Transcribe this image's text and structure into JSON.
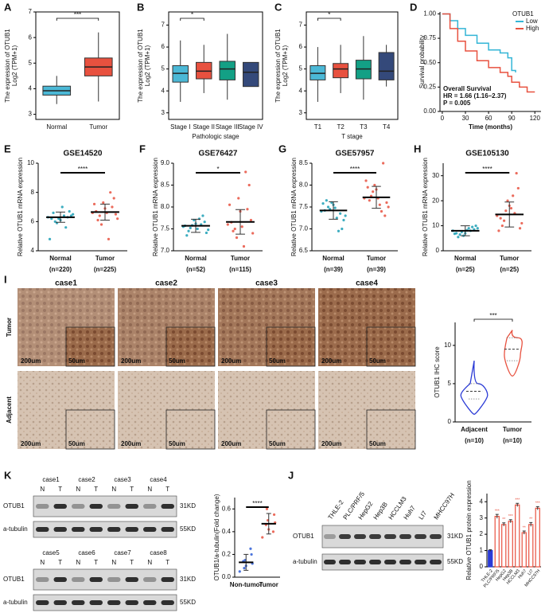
{
  "panels": [
    {
      "label": "A",
      "chart": {
        "type": "box",
        "ylabel": [
          "The expression of OTUB1",
          "Log2 (TPM+1)"
        ],
        "categories": [
          "Normal",
          "Tumor"
        ],
        "colors": [
          "#4bb8d6",
          "#e8513f"
        ],
        "boxes": [
          {
            "low": 3.4,
            "q1": 3.75,
            "median": 3.92,
            "q3": 4.1,
            "high": 4.5
          },
          {
            "low": 3.5,
            "q1": 4.5,
            "median": 4.85,
            "q3": 5.2,
            "high": 6.2
          }
        ],
        "ylim": [
          2.8,
          7
        ],
        "yticks": [
          3,
          4,
          5,
          6,
          7
        ],
        "significance": "***"
      }
    },
    {
      "label": "B",
      "chart": {
        "type": "box",
        "ylabel": [
          "The expression of OTUB1",
          "Log2 (TPM+1)"
        ],
        "xlabel": "Pathologic stage",
        "categories": [
          "Stage I",
          "Stage II",
          "Stage III",
          "Stage IV"
        ],
        "colors": [
          "#4bb8d6",
          "#e8513f",
          "#13a085",
          "#34497a"
        ],
        "boxes": [
          {
            "low": 3.5,
            "q1": 4.4,
            "median": 4.8,
            "q3": 5.15,
            "high": 6.3
          },
          {
            "low": 3.9,
            "q1": 4.55,
            "median": 4.9,
            "q3": 5.3,
            "high": 6.1
          },
          {
            "low": 3.6,
            "q1": 4.5,
            "median": 5.0,
            "q3": 5.35,
            "high": 6.6
          },
          {
            "low": 4.2,
            "q1": 4.2,
            "median": 4.85,
            "q3": 5.3,
            "high": 5.3
          }
        ],
        "ylim": [
          2.7,
          7.6
        ],
        "yticks": [
          3,
          4,
          5,
          6,
          7
        ],
        "significance": "*"
      }
    },
    {
      "label": "C",
      "chart": {
        "type": "box",
        "ylabel": [
          "The expression of OTUB1",
          "Log2 (TPM+1)"
        ],
        "xlabel": "T stage",
        "categories": [
          "T1",
          "T2",
          "T3",
          "T4"
        ],
        "colors": [
          "#4bb8d6",
          "#e8513f",
          "#13a085",
          "#34497a"
        ],
        "boxes": [
          {
            "low": 3.5,
            "q1": 4.5,
            "median": 4.8,
            "q3": 5.15,
            "high": 6.0
          },
          {
            "low": 3.9,
            "q1": 4.6,
            "median": 5.0,
            "q3": 5.25,
            "high": 6.1
          },
          {
            "low": 3.6,
            "q1": 4.55,
            "median": 5.0,
            "q3": 5.4,
            "high": 6.5
          },
          {
            "low": 4.2,
            "q1": 4.5,
            "median": 4.9,
            "q3": 5.75,
            "high": 6.1
          }
        ],
        "ylim": [
          2.7,
          7.6
        ],
        "yticks": [
          3,
          4,
          5,
          6,
          7
        ],
        "significance": "*"
      }
    },
    {
      "label": "D",
      "chart": {
        "type": "km",
        "ylabel": "Survival probability",
        "xlabel": "Time (months)",
        "legend_title": "OTUB1",
        "annotations": [
          "Overall Survival",
          "HR = 1.66 (1.16–2.37)",
          "P = 0.005"
        ],
        "xlim": [
          -3,
          128
        ],
        "ylim": [
          0,
          1.02
        ],
        "xticks": [
          0,
          30,
          60,
          90,
          120
        ],
        "yticks": [
          {
            "value": 0,
            "label": "0.00"
          },
          {
            "value": 0.25,
            "label": "0.25"
          },
          {
            "value": 0.5,
            "label": "0.50"
          },
          {
            "value": 0.75,
            "label": "0.75"
          },
          {
            "value": 1,
            "label": "1.00"
          }
        ],
        "series": [
          {
            "name": "Low",
            "color": "#33b5d6",
            "x": [
              0,
              10,
              20,
              30,
              45,
              60,
              75,
              85,
              90,
              95
            ],
            "y": [
              1,
              0.93,
              0.85,
              0.78,
              0.7,
              0.63,
              0.6,
              0.55,
              0.42,
              0.4
            ]
          },
          {
            "name": "High",
            "color": "#e8513f",
            "x": [
              0,
              10,
              20,
              30,
              45,
              60,
              75,
              85,
              90,
              100,
              110,
              120
            ],
            "y": [
              1,
              0.85,
              0.72,
              0.62,
              0.52,
              0.45,
              0.4,
              0.36,
              0.3,
              0.25,
              0.2,
              0.2
            ]
          }
        ]
      }
    },
    {
      "label": "E",
      "chart": {
        "type": "dot",
        "title": "GSE14520",
        "ylabel": "Relative OTUB1 mRNA expression",
        "categories": [
          "Normal",
          "Tumor"
        ],
        "n_labels": [
          "(n=220)",
          "(n=225)"
        ],
        "colors": [
          "#1b9fb5",
          "#e8513f"
        ],
        "means": [
          6.3,
          6.65
        ],
        "sds": [
          0.35,
          0.55
        ],
        "points": [
          [
            6.3,
            6.1,
            6.5,
            6.2,
            6.4,
            5.9,
            6.7,
            6.0,
            6.3,
            6.6,
            5.6,
            6.2,
            6.4,
            4.8,
            7.0
          ],
          [
            6.6,
            6.9,
            6.2,
            7.3,
            6.5,
            5.8,
            7.6,
            6.4,
            7.0,
            6.1,
            8.0,
            6.7,
            4.8,
            7.2,
            6.6
          ]
        ],
        "ylim": [
          4,
          10
        ],
        "yticks": [
          4,
          6,
          8,
          10
        ],
        "significance": "****"
      }
    },
    {
      "label": "F",
      "chart": {
        "type": "dot",
        "title": "GSE76427",
        "ylabel": "Relative OTUB1 mRNA expression",
        "categories": [
          "Normal",
          "Tumor"
        ],
        "n_labels": [
          "(n=52)",
          "(n=115)"
        ],
        "colors": [
          "#1b9fb5",
          "#e8513f"
        ],
        "means": [
          7.57,
          7.66
        ],
        "sds": [
          0.15,
          0.28
        ],
        "points": [
          [
            7.55,
            7.62,
            7.48,
            7.7,
            7.41,
            7.58,
            7.66,
            7.52,
            7.8,
            7.45,
            7.6,
            7.35,
            7.73,
            7.57,
            7.5
          ],
          [
            7.6,
            7.9,
            7.4,
            8.2,
            7.7,
            7.3,
            8.5,
            7.5,
            7.95,
            7.45,
            8.8,
            7.65,
            7.1,
            8.05,
            7.55
          ]
        ],
        "ylim": [
          7,
          9
        ],
        "yticks": [
          {
            "value": 7,
            "label": "7.0"
          },
          7.5,
          {
            "value": 8,
            "label": "8.0"
          },
          8.5,
          {
            "value": 9,
            "label": "9.0"
          }
        ],
        "significance": "*"
      }
    },
    {
      "label": "G",
      "chart": {
        "type": "dot",
        "title": "GSE57957",
        "ylabel": "Relative OTUB1 mRNA expression",
        "categories": [
          "Normal",
          "Tumor"
        ],
        "n_labels": [
          "(n=39)",
          "(n=39)"
        ],
        "colors": [
          "#1b9fb5",
          "#e8513f"
        ],
        "means": [
          7.42,
          7.72
        ],
        "sds": [
          0.2,
          0.25
        ],
        "points": [
          [
            7.4,
            7.55,
            7.3,
            7.6,
            7.2,
            7.45,
            7.0,
            7.5,
            7.35,
            7.65,
            6.95,
            7.42,
            7.25,
            7.58,
            7.48
          ],
          [
            7.7,
            7.9,
            7.5,
            8.0,
            7.6,
            7.85,
            7.3,
            7.75,
            8.5,
            7.65,
            7.4,
            7.95,
            7.55,
            8.1,
            7.7
          ]
        ],
        "ylim": [
          6.5,
          8.5
        ],
        "yticks": [
          6.5,
          {
            "value": 7,
            "label": "7.0"
          },
          7.5,
          {
            "value": 8,
            "label": "8.0"
          },
          8.5
        ],
        "significance": "****"
      }
    },
    {
      "label": "H",
      "chart": {
        "type": "dot",
        "title": "GSE105130",
        "ylabel": "Relative OTUB1 mRNA expression",
        "categories": [
          "Normal",
          "Tumor"
        ],
        "n_labels": [
          "(n=25)",
          "(n=25)"
        ],
        "colors": [
          "#1b9fb5",
          "#e8513f"
        ],
        "means": [
          8,
          14.5
        ],
        "sds": [
          2,
          5
        ],
        "points": [
          [
            8,
            7,
            9,
            6,
            10,
            7.5,
            8.5,
            6.5,
            9.5,
            5.5,
            8,
            7,
            9,
            6.8,
            8.2
          ],
          [
            14,
            18,
            11,
            20,
            9,
            16,
            25,
            12,
            31,
            10,
            15,
            13,
            22,
            8,
            17
          ]
        ],
        "ylim": [
          0,
          35
        ],
        "yticks": [
          0,
          10,
          20,
          30
        ],
        "significance": "****"
      }
    },
    {
      "label": "I",
      "ihc": {
        "cases": [
          "case1",
          "case2",
          "case3",
          "case4"
        ],
        "rows": [
          "Tumor",
          "Adjacent"
        ],
        "scale_labels": [
          "200um",
          "50um"
        ]
      },
      "chart": {
        "type": "violin",
        "ylabel": "OTUB1 IHC score",
        "categories": [
          "Adjacent",
          "Tumor"
        ],
        "n_labels": [
          "(n=10)",
          "(n=10)"
        ],
        "colors": [
          "#2b3bd6",
          "#e8513f"
        ],
        "stats": [
          {
            "min": 1,
            "q1": 3,
            "median": 4,
            "q3": 5,
            "max": 8
          },
          {
            "min": 6,
            "q1": 8,
            "median": 9.5,
            "q3": 11,
            "max": 12
          }
        ],
        "ylim": [
          0,
          13
        ],
        "yticks": [
          0,
          5,
          10
        ],
        "significance": "***"
      }
    },
    {
      "label": "K",
      "blot": {
        "cases": [
          "case1",
          "case2",
          "case3",
          "case4",
          "case5",
          "case6",
          "case7",
          "case8"
        ],
        "lanes": [
          "N",
          "T"
        ],
        "proteins": [
          "OTUB1",
          "a-tubulin"
        ],
        "sizes": [
          "31KD",
          "55KD"
        ]
      },
      "chart": {
        "type": "dot",
        "ylabel": "OTUB1/a-tubulin(Fold change)",
        "categories": [
          "Non-tumor",
          "Tumor"
        ],
        "colors": [
          "#2b5cd6",
          "#e8513f"
        ],
        "means": [
          0.13,
          0.47
        ],
        "sds": [
          0.07,
          0.09
        ],
        "points": [
          [
            0.05,
            0.1,
            0.12,
            0.15,
            0.2,
            0.08,
            0.25,
            0.14
          ],
          [
            0.35,
            0.42,
            0.48,
            0.5,
            0.55,
            0.6,
            0.4,
            0.46
          ]
        ],
        "ylim": [
          0,
          0.7
        ],
        "yticks": [
          {
            "value": 0,
            "label": "0.0"
          },
          0.2,
          0.4,
          0.6
        ],
        "significance": "****"
      }
    },
    {
      "label": "J",
      "blot": {
        "cells": [
          "THLE-2",
          "PLC/PRF/5",
          "HepG2",
          "Hep3B",
          "HCCLM3",
          "Huh7",
          "LI7",
          "MHCC97H"
        ],
        "proteins": [
          "OTUB1",
          "a-tubulin"
        ],
        "sizes": [
          "31KD",
          "55KD"
        ]
      },
      "chart": {
        "type": "bar",
        "ylabel": "Relative OTUB1 protein expression",
        "categories": [
          "THLE-2",
          "PLC/PRF/5",
          "HepG2",
          "Hep3B",
          "HCCLM3",
          "Huh7",
          "LI7",
          "MHCC97H"
        ],
        "values": [
          1,
          3.1,
          2.6,
          2.8,
          3.8,
          2.1,
          2.6,
          3.6
        ],
        "errors": [
          0.05,
          0.12,
          0.1,
          0.1,
          0.1,
          0.1,
          0.12,
          0.1
        ],
        "colors": [
          "#2b3bd6",
          "#e8513f",
          "#e8513f",
          "#e8513f",
          "#e8513f",
          "#e8513f",
          "#e8513f",
          "#e8513f"
        ],
        "sig": [
          null,
          "***",
          "**",
          "***",
          "***",
          "**",
          "**",
          "***"
        ],
        "ylim": [
          0,
          4.5
        ],
        "yticks": [
          0,
          1,
          2,
          3,
          4
        ]
      }
    }
  ]
}
